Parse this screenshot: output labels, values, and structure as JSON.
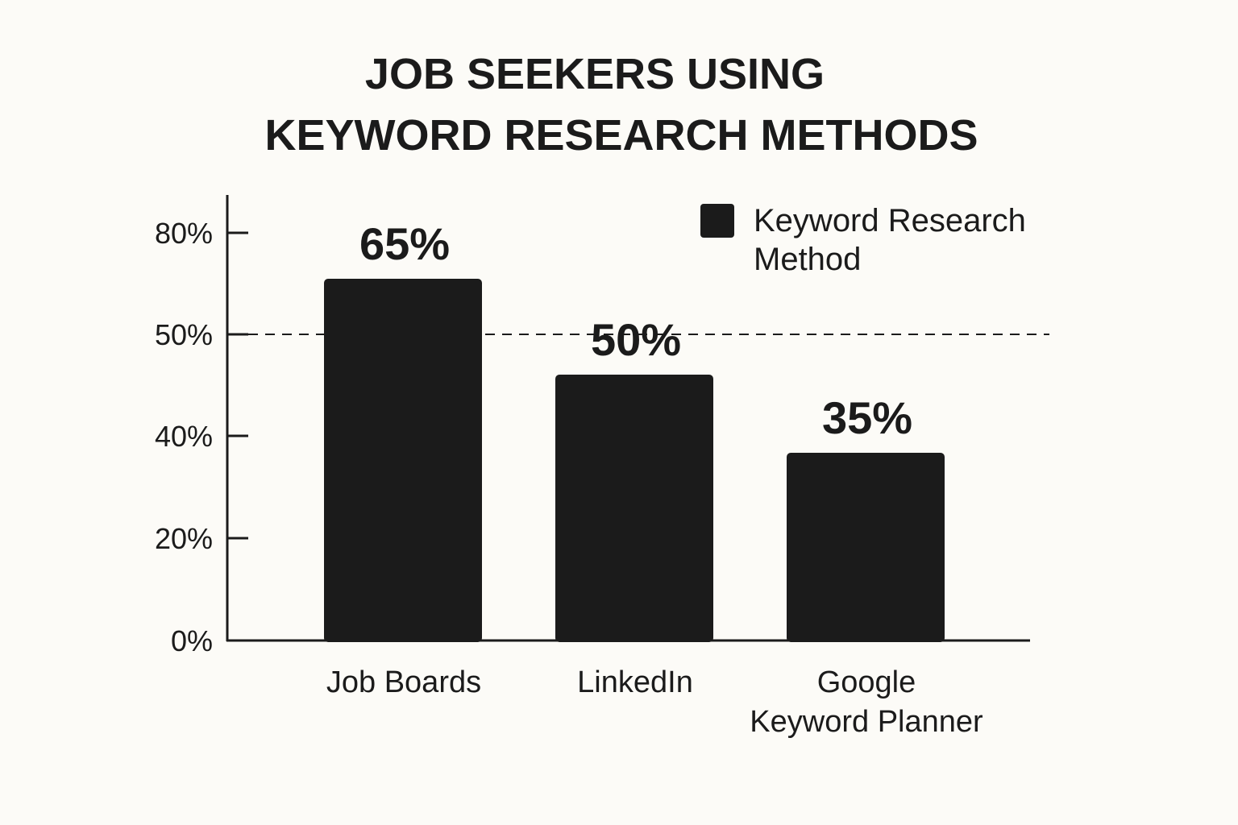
{
  "chart_data": {
    "type": "bar",
    "title": [
      "JOB SEEKERS USING",
      "KEYWORD RESEARCH METHODS"
    ],
    "categories": [
      [
        "Job Boards"
      ],
      [
        "LinkedIn"
      ],
      [
        "Google",
        "Keyword Planner"
      ]
    ],
    "series": [
      {
        "name": [
          "Keyword Research",
          "Method"
        ],
        "values": [
          65,
          50,
          35
        ]
      }
    ],
    "data_labels": [
      "65%",
      "50%",
      "35%"
    ],
    "y_ticks": [
      {
        "label": "0%",
        "value": 0
      },
      {
        "label": "20%",
        "value": 20
      },
      {
        "label": "40%",
        "value": 40
      },
      {
        "label": "50%",
        "value": 50
      },
      {
        "label": "80%",
        "value": 80
      }
    ],
    "reference_line": {
      "value": 50,
      "style": "dashed"
    },
    "legend_position": "top-right",
    "grid": false,
    "colors": {
      "bar": "#1b1b1b",
      "background": "#fcfbf7",
      "text": "#1b1b1b"
    }
  }
}
